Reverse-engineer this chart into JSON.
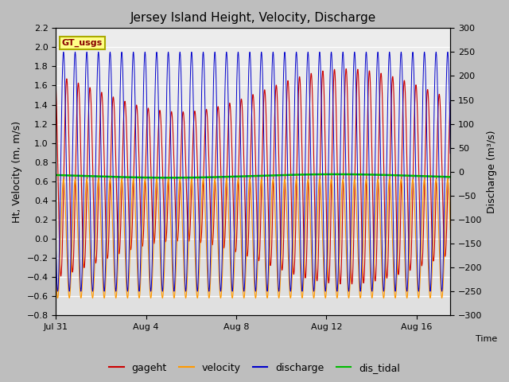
{
  "title": "Jersey Island Height, Velocity, Discharge",
  "ylabel_left": "Ht, Velocity (m, m/s)",
  "ylabel_right": "Discharge (m³/s)",
  "xlabel": "Time",
  "ylim_left": [
    -0.8,
    2.2
  ],
  "ylim_right": [
    -300,
    300
  ],
  "xlim_start": 0,
  "xlim_end": 17.5,
  "x_ticks_positions": [
    0,
    4,
    8,
    12,
    16
  ],
  "x_ticks_labels": [
    "Jul 31",
    "Aug 4",
    "Aug 8",
    "Aug 12",
    "Aug 16"
  ],
  "yticks_left_min": -0.8,
  "yticks_left_max": 2.2,
  "yticks_left_step": 0.2,
  "yticks_right_min": -300,
  "yticks_right_max": 300,
  "yticks_right_step": 50,
  "colors": {
    "gageht": "#cc0000",
    "velocity": "#ff9900",
    "discharge": "#0000cc",
    "dis_tidal": "#00bb00"
  },
  "legend_box_label": "GT_usgs",
  "legend_box_facecolor": "#ffff88",
  "legend_box_edgecolor": "#aaaa00",
  "fig_bg_color": "#bebebe",
  "plot_bg_color": "#e0e0e0",
  "plot_bg_color_upper": "#f0f0f0",
  "grid_color": "#ffffff",
  "title_fontsize": 11,
  "axis_label_fontsize": 9,
  "tick_fontsize": 8,
  "legend_fontsize": 9,
  "tidal_period_hours": 12.4,
  "n_points": 3000,
  "time_days": 17.5
}
